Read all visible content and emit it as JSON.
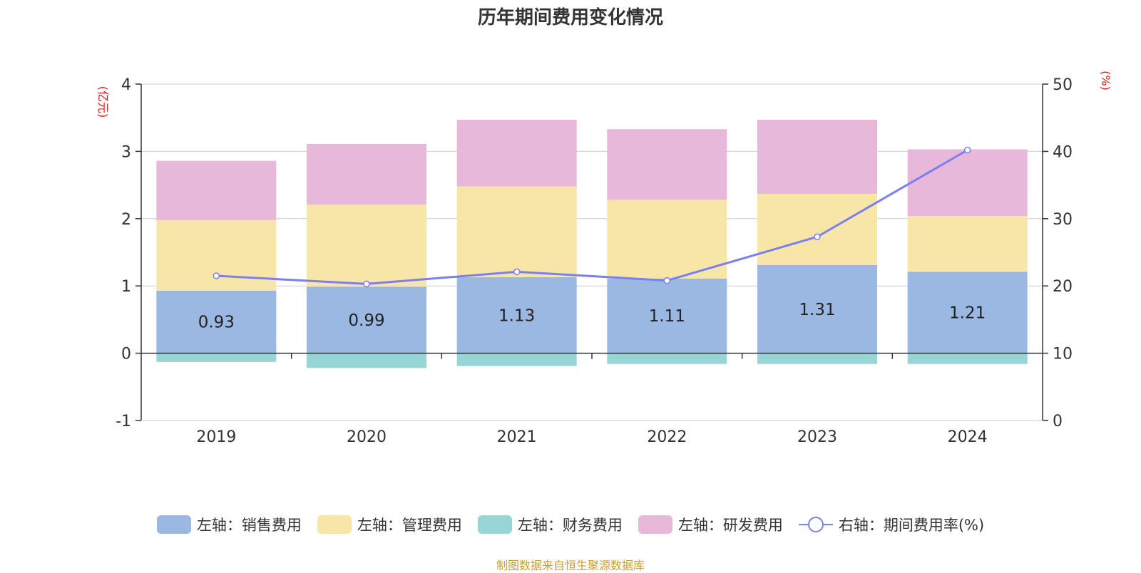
{
  "chart_data": {
    "type": "bar",
    "title": "历年期间费用变化情况",
    "left_axis_unit": "(亿元)",
    "right_axis_unit": "(%)",
    "categories": [
      "2019",
      "2020",
      "2021",
      "2022",
      "2023",
      "2024"
    ],
    "left_axis": {
      "min": -1,
      "max": 4,
      "ticks": [
        "4",
        "3",
        "2",
        "1",
        "0",
        "-1"
      ]
    },
    "right_axis": {
      "min": 0,
      "max": 50,
      "ticks": [
        "50",
        "40",
        "30",
        "20",
        "10",
        "0"
      ]
    },
    "series": [
      {
        "name": "左轴：销售费用",
        "axis": "left",
        "type": "bar",
        "color": "#9bb8e2",
        "values": [
          0.93,
          0.99,
          1.13,
          1.11,
          1.31,
          1.21
        ],
        "labels": [
          "0.93",
          "0.99",
          "1.13",
          "1.11",
          "1.31",
          "1.21"
        ]
      },
      {
        "name": "左轴：管理费用",
        "axis": "left",
        "type": "bar",
        "color": "#f7e6a8",
        "values": [
          1.05,
          1.22,
          1.35,
          1.17,
          1.06,
          0.83
        ]
      },
      {
        "name": "左轴：财务费用",
        "axis": "left",
        "type": "bar",
        "color": "#98d5d6",
        "values": [
          -0.13,
          -0.22,
          -0.19,
          -0.16,
          -0.16,
          -0.16
        ]
      },
      {
        "name": "左轴：研发费用",
        "axis": "left",
        "type": "bar",
        "color": "#e8b8da",
        "values": [
          0.88,
          0.9,
          0.99,
          1.05,
          1.1,
          0.99
        ]
      },
      {
        "name": "右轴：期间费用率(%)",
        "axis": "right",
        "type": "line",
        "color": "#7b7ff0",
        "values": [
          21.5,
          20.3,
          22.1,
          20.8,
          27.3,
          40.2
        ]
      }
    ],
    "grid": true,
    "legend_position": "bottom"
  },
  "source": "制图数据来自恒生聚源数据库"
}
